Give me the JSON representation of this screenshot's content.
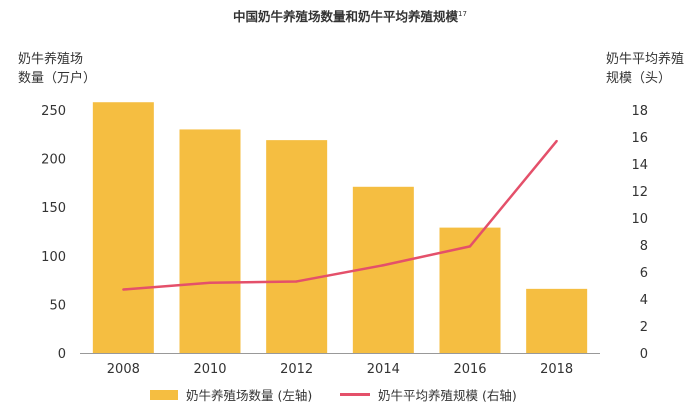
{
  "title": {
    "text": "中国奶牛养殖场数量和奶牛平均养殖规模",
    "sup": "17"
  },
  "colors": {
    "bar": "#F5BE41",
    "line": "#E4506A",
    "axis": "#999999",
    "text": "#333333"
  },
  "chart_data": {
    "type": "bar",
    "title": "中国奶牛养殖场数量和奶牛平均养殖规模",
    "categories": [
      "2008",
      "2010",
      "2012",
      "2014",
      "2016",
      "2018"
    ],
    "ylabel_left": [
      "奶牛养殖场",
      "数量（万户）"
    ],
    "ylabel_right": [
      "奶牛平均养殖",
      "规模（头）"
    ],
    "ylim_left": [
      0,
      250
    ],
    "yticks_left": [
      "0",
      "50",
      "100",
      "150",
      "200",
      "250"
    ],
    "ylim_right": [
      0,
      18
    ],
    "yticks_right": [
      "0",
      "2",
      "4",
      "6",
      "8",
      "10",
      "12",
      "14",
      "16",
      "18"
    ],
    "grid": false,
    "legend_position": "bottom",
    "series": [
      {
        "name": "奶牛养殖场数量 (左轴)",
        "type": "bar",
        "axis": "left",
        "values": [
          258,
          230,
          219,
          171,
          129,
          66
        ]
      },
      {
        "name": "奶牛平均养殖规模 (右轴)",
        "type": "line",
        "axis": "right",
        "values": [
          4.7,
          5.2,
          5.3,
          6.5,
          7.9,
          15.7
        ]
      }
    ]
  }
}
